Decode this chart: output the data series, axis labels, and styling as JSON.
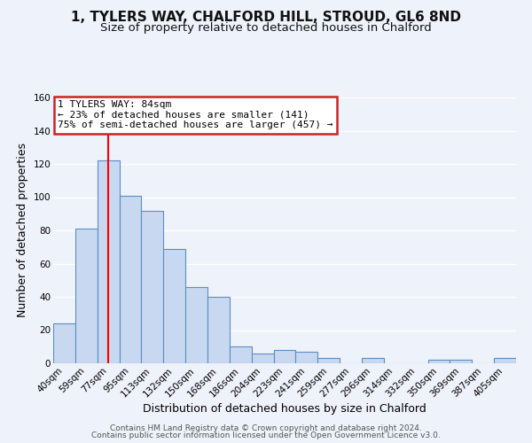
{
  "title": "1, TYLERS WAY, CHALFORD HILL, STROUD, GL6 8ND",
  "subtitle": "Size of property relative to detached houses in Chalford",
  "xlabel": "Distribution of detached houses by size in Chalford",
  "ylabel": "Number of detached properties",
  "bar_labels": [
    "40sqm",
    "59sqm",
    "77sqm",
    "95sqm",
    "113sqm",
    "132sqm",
    "150sqm",
    "168sqm",
    "186sqm",
    "204sqm",
    "223sqm",
    "241sqm",
    "259sqm",
    "277sqm",
    "296sqm",
    "314sqm",
    "332sqm",
    "350sqm",
    "369sqm",
    "387sqm",
    "405sqm"
  ],
  "bar_values": [
    24,
    81,
    122,
    101,
    92,
    69,
    46,
    40,
    10,
    6,
    8,
    7,
    3,
    0,
    3,
    0,
    0,
    2,
    2,
    0,
    3
  ],
  "bar_color": "#c8d8f0",
  "bar_edge_color": "#5a8fc3",
  "red_line_bar_index": 2,
  "annotation_title": "1 TYLERS WAY: 84sqm",
  "annotation_line1": "← 23% of detached houses are smaller (141)",
  "annotation_line2": "75% of semi-detached houses are larger (457) →",
  "ylim": [
    0,
    160
  ],
  "yticks": [
    0,
    20,
    40,
    60,
    80,
    100,
    120,
    140,
    160
  ],
  "footer1": "Contains HM Land Registry data © Crown copyright and database right 2024.",
  "footer2": "Contains public sector information licensed under the Open Government Licence v3.0.",
  "background_color": "#eef2fa",
  "grid_color": "#ffffff",
  "title_fontsize": 11,
  "subtitle_fontsize": 9.5,
  "axis_label_fontsize": 9,
  "tick_fontsize": 7.5,
  "footer_fontsize": 6.5
}
